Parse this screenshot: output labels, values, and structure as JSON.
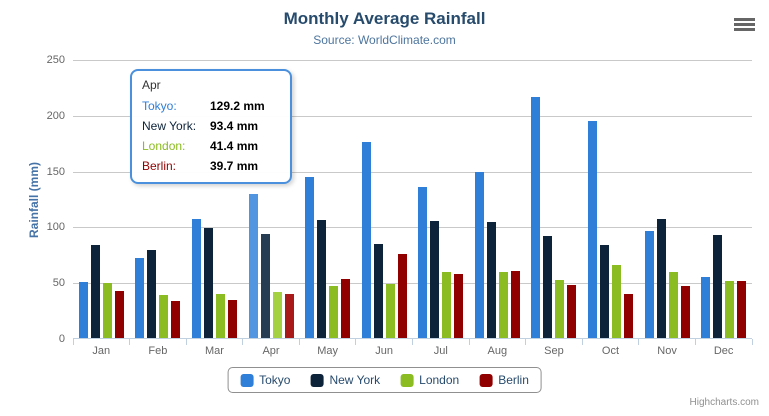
{
  "title": "Monthly Average Rainfall",
  "subtitle": "Source: WorldClimate.com",
  "y_axis_title": "Rainfall (mm)",
  "credits": "Highcharts.com",
  "icons": {
    "menu": "hamburger-icon"
  },
  "colors": {
    "title": "#274b6d",
    "subtitle": "#4d759e",
    "axis_label": "#666666",
    "gridline": "#c9c9c9",
    "axis_line": "#c0d0e0",
    "legend_border": "#909090",
    "tooltip_border": "#4a90dc",
    "credits": "#909090"
  },
  "chart_data": {
    "type": "bar",
    "title": "Monthly Average Rainfall",
    "subtitle": "Source: WorldClimate.com",
    "xlabel": "",
    "ylabel": "Rainfall (mm)",
    "ylim": [
      0,
      250
    ],
    "y_ticks": [
      0,
      50,
      100,
      150,
      200,
      250
    ],
    "grid": true,
    "legend_position": "bottom",
    "categories": [
      "Jan",
      "Feb",
      "Mar",
      "Apr",
      "May",
      "Jun",
      "Jul",
      "Aug",
      "Sep",
      "Oct",
      "Nov",
      "Dec"
    ],
    "series": [
      {
        "name": "Tokyo",
        "color": "#2f7ed8",
        "hover_color": "#5194e0",
        "values": [
          49.9,
          71.5,
          106.4,
          129.2,
          144.0,
          176.0,
          135.6,
          148.5,
          216.4,
          194.1,
          95.6,
          54.4
        ]
      },
      {
        "name": "New York",
        "color": "#0d233a",
        "hover_color": "#263c53",
        "values": [
          83.6,
          78.8,
          98.5,
          93.4,
          106.0,
          84.5,
          105.0,
          104.3,
          91.2,
          83.5,
          106.6,
          92.3
        ]
      },
      {
        "name": "London",
        "color": "#8bbc21",
        "hover_color": "#a3d141",
        "values": [
          48.9,
          38.8,
          39.3,
          41.4,
          47.0,
          48.3,
          59.0,
          59.6,
          52.4,
          65.2,
          59.3,
          51.2
        ]
      },
      {
        "name": "Berlin",
        "color": "#910000",
        "hover_color": "#aa1919",
        "values": [
          42.4,
          33.2,
          34.5,
          39.7,
          52.6,
          75.5,
          57.4,
          60.4,
          47.6,
          39.1,
          46.8,
          51.1
        ]
      }
    ],
    "highlighted_category": "Apr",
    "highlighted_category_index": 3
  },
  "tooltip": {
    "category": "Apr",
    "rows": [
      {
        "name": "Tokyo:",
        "value": "129.2 mm"
      },
      {
        "name": "New York:",
        "value": "93.4 mm"
      },
      {
        "name": "London:",
        "value": "41.4 mm"
      },
      {
        "name": "Berlin:",
        "value": "39.7 mm"
      }
    ]
  }
}
